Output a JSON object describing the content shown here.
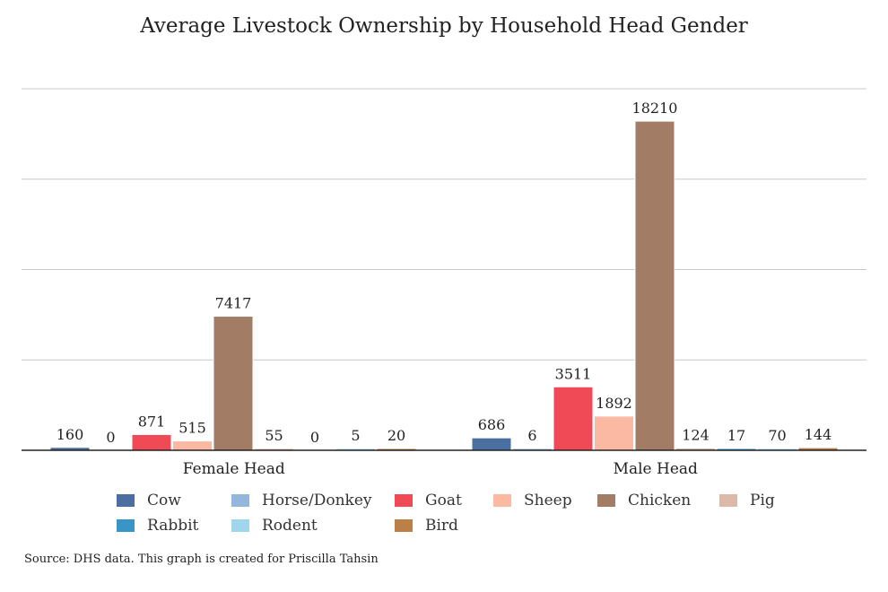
{
  "chart_data": {
    "type": "bar",
    "title": "Average Livestock Ownership by Household Head Gender",
    "categories": [
      "Female Head",
      "Male Head"
    ],
    "series": [
      {
        "name": "Cow",
        "color": "#4a6fa0",
        "values": [
          160,
          686
        ]
      },
      {
        "name": "Horse/Donkey",
        "color": "#94b5dc",
        "values": [
          0,
          6
        ]
      },
      {
        "name": "Goat",
        "color": "#ef4a55",
        "values": [
          871,
          3511
        ]
      },
      {
        "name": "Sheep",
        "color": "#fbb8a3",
        "values": [
          515,
          1892
        ]
      },
      {
        "name": "Chicken",
        "color": "#a27c65",
        "values": [
          7417,
          18210
        ]
      },
      {
        "name": "Pig",
        "color": "#dcbaaa",
        "values": [
          55,
          124
        ]
      },
      {
        "name": "Rabbit",
        "color": "#3a95c7",
        "values": [
          0,
          17
        ]
      },
      {
        "name": "Rodent",
        "color": "#9fd6ee",
        "values": [
          5,
          70
        ]
      },
      {
        "name": "Bird",
        "color": "#bb7f48",
        "values": [
          20,
          144
        ]
      }
    ],
    "ylim": [
      0,
      20000
    ],
    "grid": true,
    "legend_position": "bottom",
    "source": "Source: DHS data. This graph is created for Priscilla Tahsin"
  }
}
